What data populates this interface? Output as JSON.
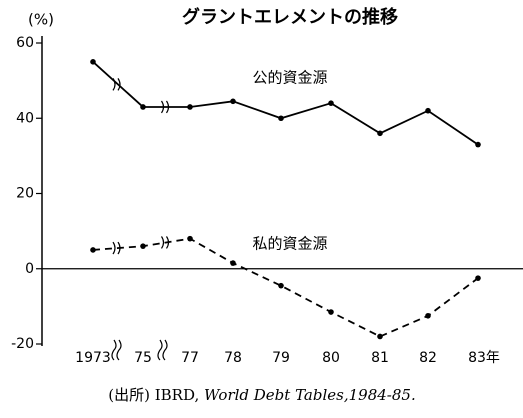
{
  "chart_data": {
    "type": "line",
    "title": "グラントエレメントの推移",
    "ylabel": "(%)",
    "categories": [
      "1973",
      "75",
      "77",
      "78",
      "79",
      "80",
      "81",
      "82",
      "83年"
    ],
    "series": [
      {
        "name": "公的資金源",
        "color": "#000000",
        "dashed": false,
        "values": [
          55,
          43,
          43,
          44.5,
          40,
          44,
          36,
          42,
          33
        ]
      },
      {
        "name": "私的資金源",
        "color": "#000000",
        "dashed": true,
        "values": [
          5,
          6,
          8,
          1.5,
          -4.5,
          -11.5,
          -18,
          -12.5,
          -2.5
        ]
      }
    ],
    "ylim": [
      -20,
      60
    ],
    "yticks": [
      -20,
      0,
      20,
      40,
      60
    ],
    "source": {
      "prefix": "(出所) IBRD, ",
      "italic": "World Debt Tables,1984-85."
    }
  }
}
